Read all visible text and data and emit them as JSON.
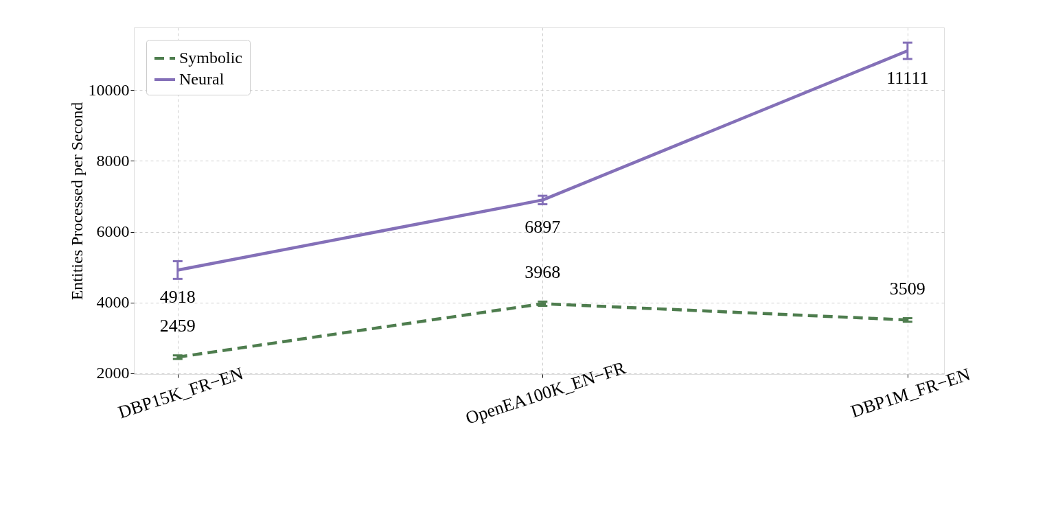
{
  "chart_data": {
    "type": "line",
    "ylabel": "Entities Processed per Second",
    "categories": [
      "DBP15K_FR−EN",
      "OpenEA100K_EN−FR",
      "DBP1M_FR−EN"
    ],
    "series": [
      {
        "name": "Symbolic",
        "color": "#4e7d4e",
        "values": [
          2459,
          3968,
          3509
        ],
        "errors": [
          50,
          60,
          50
        ],
        "line_style": "dashed"
      },
      {
        "name": "Neural",
        "color": "#8470b8",
        "values": [
          4918,
          6897,
          11111
        ],
        "errors": [
          250,
          120,
          230
        ],
        "line_style": "solid"
      }
    ],
    "ylim": [
      1980,
      11770
    ],
    "yticks": [
      2000,
      4000,
      6000,
      8000,
      10000
    ],
    "grid": true,
    "legend": "top left",
    "data_labels": true,
    "marker": "none"
  }
}
